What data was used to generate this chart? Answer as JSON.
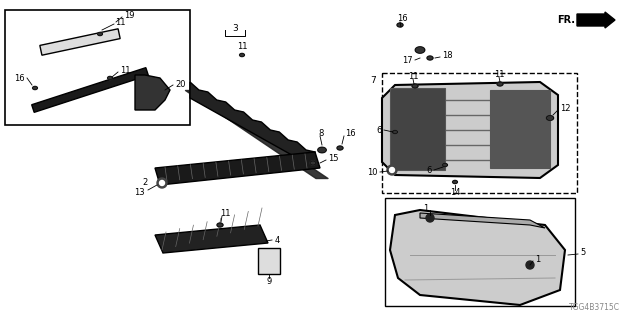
{
  "bg_color": "#ffffff",
  "diagram_code": "TGG4B3715C",
  "line_color": "#1a1a1a",
  "part_fill": "#2a2a2a",
  "light_fill": "#dddddd",
  "medium_fill": "#888888"
}
